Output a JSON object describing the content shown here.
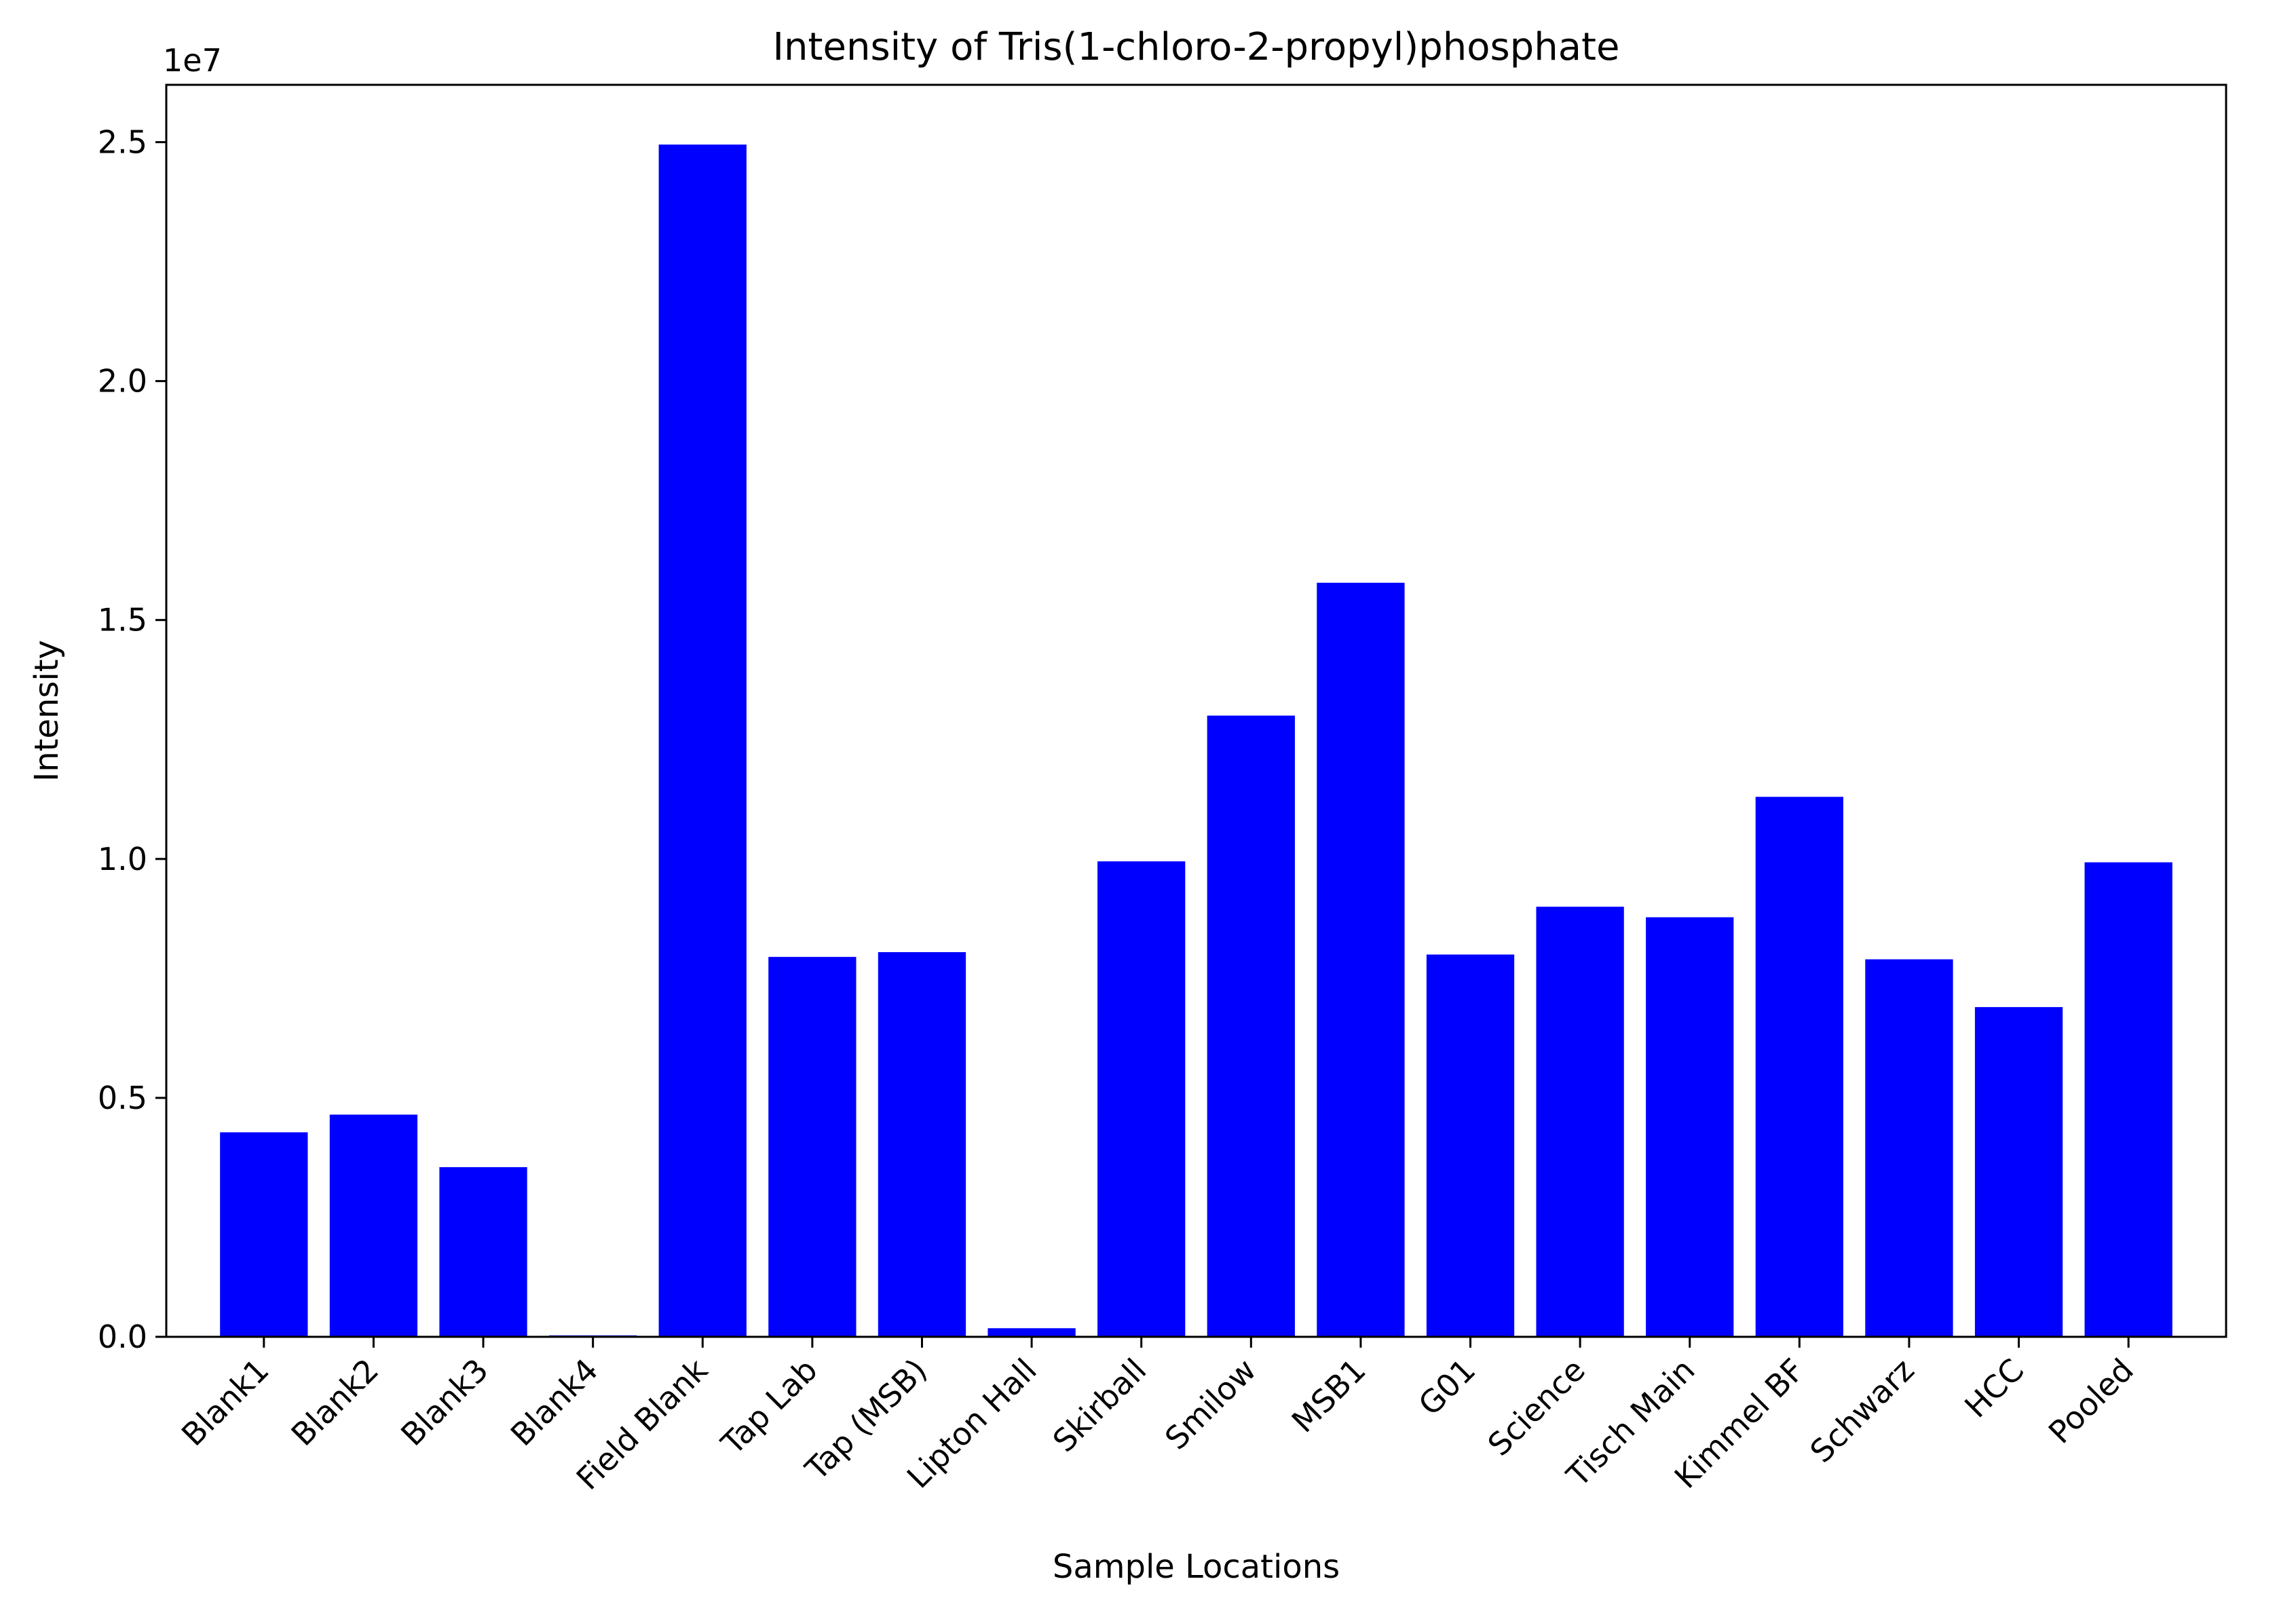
{
  "chart_data": {
    "type": "bar",
    "title": "Intensity of Tris(1-chloro-2-propyl)phosphate",
    "xlabel": "Sample Locations",
    "ylabel": "Intensity",
    "y_offset_label": "1e7",
    "categories": [
      "Blank1",
      "Blank2",
      "Blank3",
      "Blank4",
      "Field Blank",
      "Tap Lab",
      "Tap (MSB)",
      "Lipton Hall",
      "Skirball",
      "Smilow",
      "MSB1",
      "G01",
      "Science",
      "Tisch Main",
      "Kimmel BF",
      "Schwarz",
      "HCC",
      "Pooled"
    ],
    "values": [
      4280000,
      4650000,
      3550000,
      30000,
      24950000,
      7950000,
      8050000,
      180000,
      9950000,
      13000000,
      15780000,
      8000000,
      9000000,
      8780000,
      11300000,
      7900000,
      6900000,
      9930000
    ],
    "yticks": [
      0,
      5000000,
      10000000,
      15000000,
      20000000,
      25000000
    ],
    "ytick_labels": [
      "0.0",
      "0.5",
      "1.0",
      "1.5",
      "2.0",
      "2.5"
    ],
    "ylim": [
      0,
      26200000
    ],
    "bar_color": "#0000ff",
    "grid": false,
    "legend": false
  }
}
